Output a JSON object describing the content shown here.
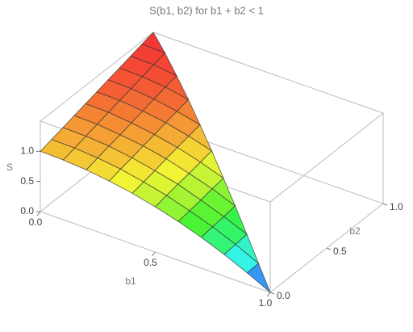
{
  "chart_data": {
    "type": "surface",
    "title": "S(b1, b2) for b1 + b2 < 1",
    "x_label": "b1",
    "y_label": "b2",
    "z_label": "S",
    "x": [
      0,
      0.1,
      0.2,
      0.3,
      0.4,
      0.5,
      0.6,
      0.7,
      0.8,
      0.9,
      1
    ],
    "y": [
      0,
      0.1,
      0.2,
      0.3,
      0.4,
      0.5,
      0.6,
      0.7,
      0.8,
      0.9,
      1
    ],
    "z": [
      [
        1,
        0.99,
        0.96,
        0.91,
        0.84,
        0.75,
        0.64,
        0.51,
        0.36,
        0.19,
        0
      ],
      [
        1.05,
        1.04,
        1.01,
        0.96,
        0.88,
        0.79,
        0.67,
        0.54,
        0.38,
        0.2,
        null
      ],
      [
        1.1,
        1.09,
        1.06,
        1.0,
        0.92,
        0.83,
        0.7,
        0.56,
        0.4,
        null,
        null
      ],
      [
        1.15,
        1.14,
        1.1,
        1.05,
        0.97,
        0.86,
        0.74,
        0.59,
        null,
        null,
        null
      ],
      [
        1.2,
        1.19,
        1.15,
        1.09,
        1.01,
        0.9,
        0.77,
        null,
        null,
        null,
        null
      ],
      [
        1.25,
        1.24,
        1.2,
        1.14,
        1.05,
        0.94,
        null,
        null,
        null,
        null,
        null
      ],
      [
        1.3,
        1.29,
        1.25,
        1.18,
        1.09,
        null,
        null,
        null,
        null,
        null,
        null
      ],
      [
        1.35,
        1.34,
        1.3,
        1.23,
        null,
        null,
        null,
        null,
        null,
        null,
        null
      ],
      [
        1.4,
        1.39,
        1.34,
        null,
        null,
        null,
        null,
        null,
        null,
        null,
        null
      ],
      [
        1.45,
        1.44,
        null,
        null,
        null,
        null,
        null,
        null,
        null,
        null,
        null
      ],
      [
        1.5,
        null,
        null,
        null,
        null,
        null,
        null,
        null,
        null,
        null,
        null
      ]
    ],
    "xlim": [
      0,
      1
    ],
    "ylim": [
      0,
      1
    ],
    "zlim": [
      0,
      1.5
    ],
    "xticks": [
      {
        "value": 0,
        "label": "0.0"
      },
      {
        "value": 0.5,
        "label": "0.5"
      },
      {
        "value": 1,
        "label": "1.0"
      }
    ],
    "yticks": [
      {
        "value": 0,
        "label": "0.0"
      },
      {
        "value": 0.5,
        "label": "0.5"
      },
      {
        "value": 1,
        "label": "1.0"
      }
    ],
    "zticks": [
      {
        "value": 0,
        "label": "0.0"
      },
      {
        "value": 0.5,
        "label": "0.5"
      },
      {
        "value": 1,
        "label": "1.0"
      }
    ]
  }
}
